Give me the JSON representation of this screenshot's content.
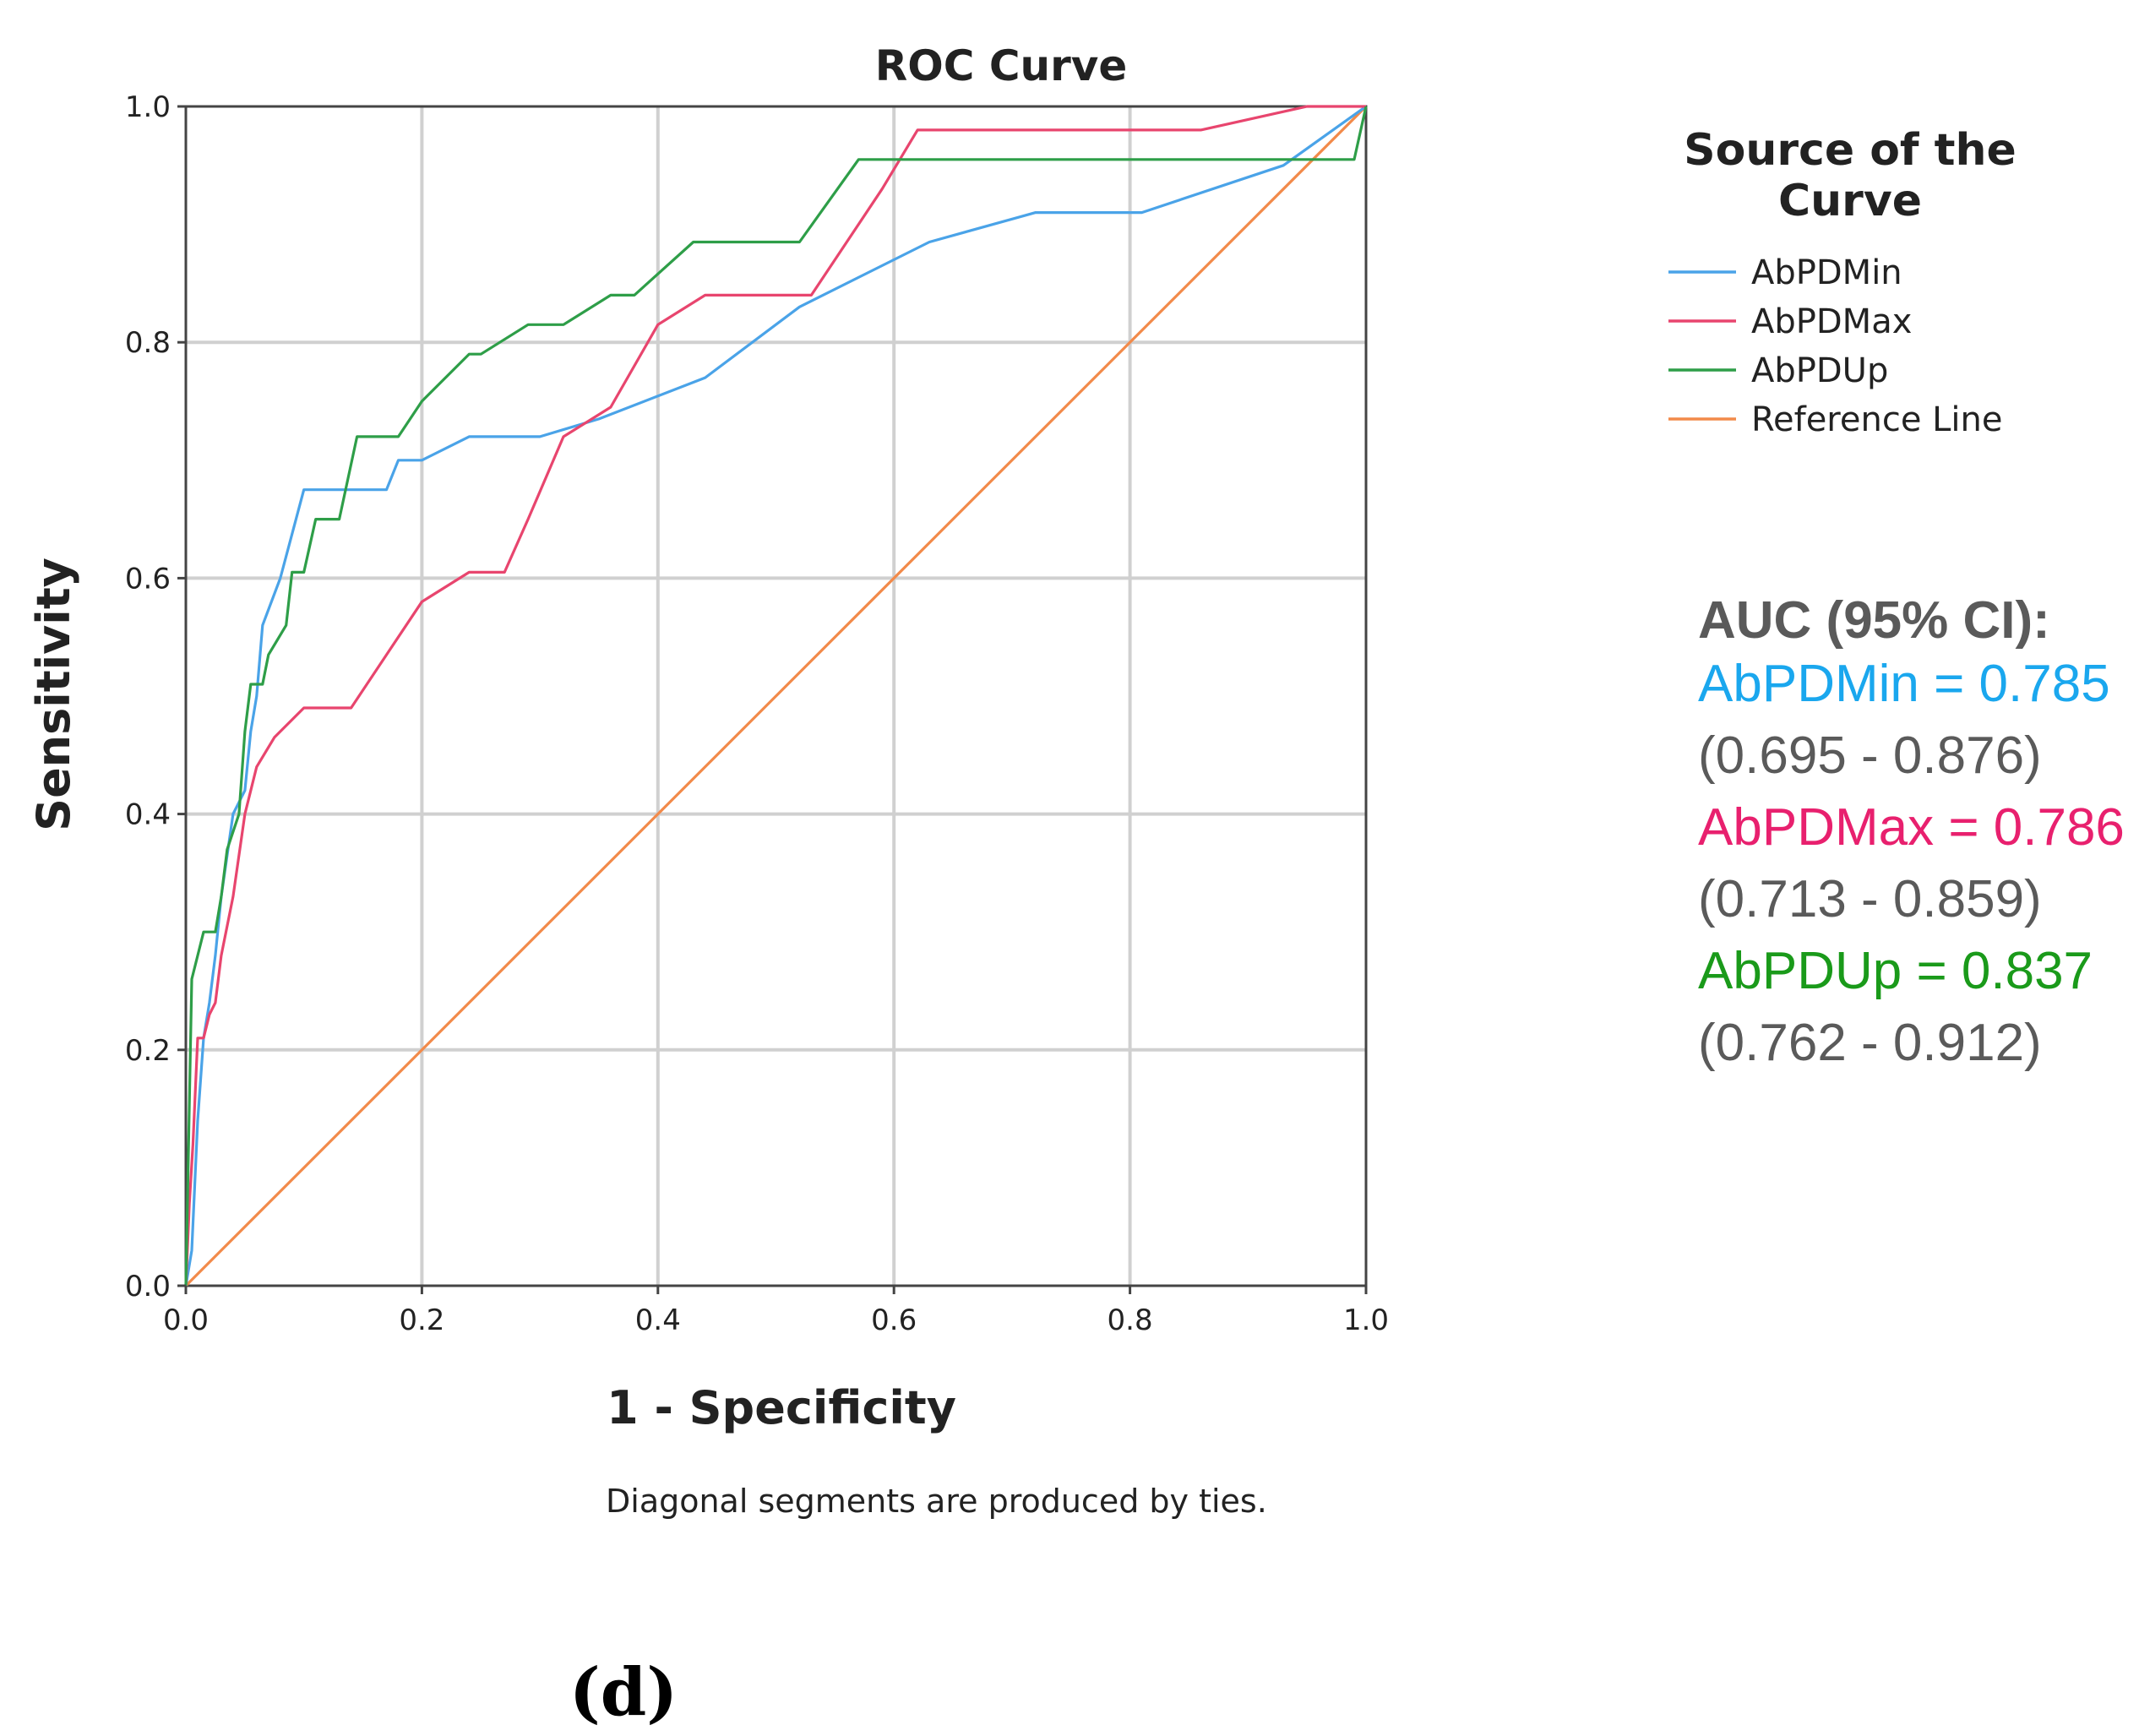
{
  "chart_data": {
    "type": "line",
    "title": "ROC Curve",
    "xlabel": "1 - Specificity",
    "ylabel": "Sensitivity",
    "xlim": [
      0,
      1
    ],
    "ylim": [
      0,
      1
    ],
    "grid": true,
    "x_ticks": [
      "0.0",
      "0.2",
      "0.4",
      "0.6",
      "0.8",
      "1.0"
    ],
    "y_ticks": [
      "0.0",
      "0.2",
      "0.4",
      "0.6",
      "0.8",
      "1.0"
    ],
    "footnote": "Diagonal segments are produced by ties.",
    "legend": {
      "title_line1": "Source of the",
      "title_line2": "Curve",
      "position": "right"
    },
    "series": [
      {
        "name": "AbPDMin",
        "color": "#4aa3e8",
        "x": [
          0,
          0.005,
          0.01,
          0.015,
          0.02,
          0.025,
          0.03,
          0.04,
          0.05,
          0.055,
          0.06,
          0.065,
          0.08,
          0.1,
          0.17,
          0.18,
          0.2,
          0.24,
          0.3,
          0.35,
          0.44,
          0.52,
          0.63,
          0.72,
          0.81,
          0.93,
          1.0
        ],
        "y": [
          0,
          0.03,
          0.14,
          0.21,
          0.24,
          0.28,
          0.33,
          0.4,
          0.42,
          0.47,
          0.5,
          0.56,
          0.6,
          0.675,
          0.675,
          0.7,
          0.7,
          0.72,
          0.72,
          0.735,
          0.77,
          0.83,
          0.885,
          0.91,
          0.91,
          0.95,
          1.0
        ]
      },
      {
        "name": "AbPDMax",
        "color": "#e8456e",
        "x": [
          0,
          0.003,
          0.006,
          0.01,
          0.015,
          0.02,
          0.025,
          0.03,
          0.04,
          0.05,
          0.06,
          0.075,
          0.1,
          0.14,
          0.17,
          0.2,
          0.24,
          0.27,
          0.29,
          0.32,
          0.36,
          0.4,
          0.44,
          0.53,
          0.59,
          0.62,
          0.86,
          0.95,
          1.0
        ],
        "y": [
          0,
          0.07,
          0.12,
          0.21,
          0.21,
          0.23,
          0.24,
          0.28,
          0.33,
          0.4,
          0.44,
          0.465,
          0.49,
          0.49,
          0.535,
          0.58,
          0.605,
          0.605,
          0.65,
          0.72,
          0.745,
          0.815,
          0.84,
          0.84,
          0.93,
          0.98,
          0.98,
          1.0,
          1.0
        ]
      },
      {
        "name": "AbPDUp",
        "color": "#2e9e48",
        "x": [
          0,
          0.005,
          0.01,
          0.015,
          0.025,
          0.03,
          0.035,
          0.045,
          0.05,
          0.055,
          0.065,
          0.07,
          0.085,
          0.09,
          0.1,
          0.11,
          0.13,
          0.145,
          0.18,
          0.2,
          0.24,
          0.25,
          0.29,
          0.32,
          0.36,
          0.38,
          0.43,
          0.52,
          0.57,
          0.99,
          1.0
        ],
        "y": [
          0,
          0.26,
          0.28,
          0.3,
          0.3,
          0.33,
          0.37,
          0.4,
          0.47,
          0.51,
          0.51,
          0.535,
          0.56,
          0.605,
          0.605,
          0.65,
          0.65,
          0.72,
          0.72,
          0.75,
          0.79,
          0.79,
          0.815,
          0.815,
          0.84,
          0.84,
          0.885,
          0.885,
          0.955,
          0.955,
          1.0
        ]
      },
      {
        "name": "Reference Line",
        "color": "#f28a4a",
        "x": [
          0,
          1
        ],
        "y": [
          0,
          1
        ]
      }
    ]
  },
  "auc_panel": {
    "heading": "AUC (95% CI):",
    "heading_color": "#5a5a5a",
    "ci_color": "#5a5a5a",
    "entries": [
      {
        "label": "AbPDMin = 0.785",
        "ci": "(0.695 - 0.876)",
        "color": "#1aa7ee"
      },
      {
        "label": "AbPDMax = 0.786",
        "ci": "(0.713 - 0.859)",
        "color": "#e8206e"
      },
      {
        "label": "AbPDUp = 0.837",
        "ci": "(0.762 - 0.912)",
        "color": "#1a9a1a"
      }
    ]
  },
  "panel_label": "(d)"
}
